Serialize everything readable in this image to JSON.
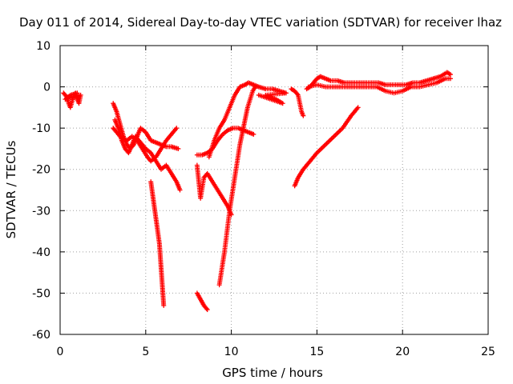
{
  "chart_data": {
    "type": "scatter",
    "title": "Day 011 of 2014, Sidereal Day-to-day VTEC variation (SDTVAR) for receiver lhaz",
    "xlabel": "GPS time / hours",
    "ylabel": "SDTVAR / TECUs",
    "xlim": [
      0,
      25
    ],
    "ylim": [
      -60,
      10
    ],
    "x_ticks": [
      "0",
      "5",
      "10",
      "15",
      "20",
      "25"
    ],
    "y_ticks": [
      "10",
      "0",
      "-10",
      "-20",
      "-30",
      "-40",
      "-50",
      "-60"
    ],
    "grid": true,
    "marker": "+",
    "color": "#ff0000",
    "series": [
      {
        "points": [
          [
            0.2,
            -1.5
          ],
          [
            0.4,
            -2.5
          ],
          [
            0.5,
            -4
          ],
          [
            0.6,
            -5
          ],
          [
            0.7,
            -3.5
          ],
          [
            0.8,
            -2
          ],
          [
            0.9,
            -1.5
          ],
          [
            1.0,
            -3
          ],
          [
            1.1,
            -4
          ],
          [
            1.2,
            -2
          ],
          [
            0.3,
            -3
          ],
          [
            0.6,
            -2
          ],
          [
            1.0,
            -1.5
          ]
        ]
      },
      {
        "points": [
          [
            3.1,
            -4
          ],
          [
            3.3,
            -6
          ],
          [
            3.5,
            -9
          ],
          [
            3.7,
            -12
          ],
          [
            3.9,
            -14
          ],
          [
            4.1,
            -15
          ],
          [
            4.3,
            -14
          ],
          [
            4.5,
            -12
          ],
          [
            4.7,
            -10
          ],
          [
            5.0,
            -11
          ],
          [
            5.3,
            -13
          ],
          [
            5.6,
            -13.5
          ],
          [
            5.9,
            -14
          ],
          [
            6.2,
            -14.5
          ],
          [
            6.5,
            -14.5
          ],
          [
            6.9,
            -15
          ]
        ]
      },
      {
        "points": [
          [
            3.1,
            -10
          ],
          [
            3.3,
            -11
          ],
          [
            3.6,
            -12.5
          ],
          [
            3.9,
            -13
          ],
          [
            4.2,
            -12
          ],
          [
            4.5,
            -13
          ],
          [
            4.8,
            -15
          ],
          [
            5.1,
            -17
          ],
          [
            5.3,
            -18
          ],
          [
            5.6,
            -17
          ],
          [
            5.9,
            -15
          ],
          [
            6.2,
            -13
          ],
          [
            6.5,
            -11.5
          ],
          [
            6.8,
            -10
          ]
        ]
      },
      {
        "points": [
          [
            3.2,
            -8
          ],
          [
            3.4,
            -10
          ],
          [
            3.6,
            -13
          ],
          [
            3.8,
            -15
          ],
          [
            4.0,
            -16
          ],
          [
            4.2,
            -14
          ],
          [
            4.4,
            -12
          ],
          [
            4.6,
            -13
          ],
          [
            4.8,
            -14
          ],
          [
            5.0,
            -15
          ],
          [
            5.3,
            -16
          ],
          [
            5.6,
            -18
          ],
          [
            5.9,
            -20
          ],
          [
            6.2,
            -19
          ],
          [
            6.5,
            -21
          ],
          [
            6.8,
            -23
          ],
          [
            7.0,
            -25
          ]
        ]
      },
      {
        "points": [
          [
            5.3,
            -23
          ],
          [
            5.4,
            -26
          ],
          [
            5.5,
            -29
          ],
          [
            5.6,
            -32
          ],
          [
            5.7,
            -35
          ],
          [
            5.8,
            -38
          ],
          [
            5.85,
            -41
          ],
          [
            5.9,
            -44
          ],
          [
            5.95,
            -47
          ],
          [
            6.0,
            -50
          ],
          [
            6.05,
            -53
          ]
        ]
      },
      {
        "points": [
          [
            8.0,
            -16.5
          ],
          [
            8.3,
            -16.5
          ],
          [
            8.6,
            -16
          ],
          [
            8.9,
            -15
          ],
          [
            9.2,
            -13
          ],
          [
            9.5,
            -11.5
          ],
          [
            9.8,
            -10.5
          ],
          [
            10.1,
            -10
          ],
          [
            10.4,
            -10
          ],
          [
            10.7,
            -10.5
          ],
          [
            11.0,
            -11
          ],
          [
            11.3,
            -11.5
          ]
        ]
      },
      {
        "points": [
          [
            8.0,
            -19
          ],
          [
            8.1,
            -23
          ],
          [
            8.2,
            -27
          ],
          [
            8.4,
            -22
          ],
          [
            8.6,
            -21
          ],
          [
            8.9,
            -23
          ],
          [
            9.2,
            -25
          ],
          [
            9.5,
            -27
          ],
          [
            9.8,
            -29
          ],
          [
            10.0,
            -31
          ]
        ]
      },
      {
        "points": [
          [
            8.0,
            -50
          ],
          [
            8.2,
            -51.5
          ],
          [
            8.4,
            -53
          ],
          [
            8.6,
            -54
          ]
        ]
      },
      {
        "points": [
          [
            9.3,
            -48
          ],
          [
            9.45,
            -44
          ],
          [
            9.6,
            -40
          ],
          [
            9.75,
            -35
          ],
          [
            9.9,
            -30
          ],
          [
            10.05,
            -26
          ],
          [
            10.2,
            -22
          ],
          [
            10.35,
            -18
          ],
          [
            10.5,
            -14
          ],
          [
            10.65,
            -11
          ],
          [
            10.8,
            -8
          ],
          [
            10.95,
            -5
          ],
          [
            11.1,
            -3
          ],
          [
            11.25,
            -1
          ],
          [
            11.4,
            0
          ]
        ]
      },
      {
        "points": [
          [
            8.7,
            -17
          ],
          [
            9.0,
            -13
          ],
          [
            9.3,
            -10
          ],
          [
            9.6,
            -8
          ],
          [
            9.9,
            -5
          ],
          [
            10.2,
            -2
          ],
          [
            10.5,
            0
          ],
          [
            10.8,
            0.5
          ],
          [
            11.0,
            1
          ],
          [
            11.3,
            0.5
          ],
          [
            11.6,
            0
          ],
          [
            12.0,
            -0.5
          ],
          [
            12.4,
            -0.5
          ],
          [
            12.8,
            -1
          ],
          [
            13.2,
            -1.5
          ],
          [
            12.0,
            -2
          ],
          [
            12.6,
            -3
          ],
          [
            13.0,
            -4
          ],
          [
            11.6,
            -2
          ]
        ]
      },
      {
        "points": [
          [
            13.5,
            -0.5
          ],
          [
            13.7,
            -1
          ],
          [
            13.9,
            -2
          ],
          [
            14.0,
            -4
          ],
          [
            14.1,
            -6
          ],
          [
            14.2,
            -7
          ]
        ]
      },
      {
        "points": [
          [
            13.7,
            -24
          ],
          [
            13.9,
            -22
          ],
          [
            14.2,
            -20
          ],
          [
            14.6,
            -18
          ],
          [
            15.0,
            -16
          ],
          [
            15.5,
            -14
          ],
          [
            16.0,
            -12
          ],
          [
            16.5,
            -10
          ],
          [
            17.0,
            -7
          ],
          [
            17.4,
            -5
          ]
        ]
      },
      {
        "points": [
          [
            14.4,
            -0.5
          ],
          [
            14.6,
            0
          ],
          [
            14.8,
            1
          ],
          [
            15.0,
            2
          ],
          [
            15.2,
            2.5
          ],
          [
            15.5,
            2
          ],
          [
            15.8,
            1.5
          ],
          [
            16.2,
            1.5
          ],
          [
            16.6,
            1
          ],
          [
            17.0,
            1
          ],
          [
            17.4,
            1
          ],
          [
            17.8,
            1
          ],
          [
            18.2,
            1
          ],
          [
            18.6,
            1
          ],
          [
            19.0,
            0.5
          ],
          [
            19.4,
            0.5
          ],
          [
            19.8,
            0.5
          ],
          [
            20.2,
            0.5
          ],
          [
            20.6,
            1
          ],
          [
            21.0,
            1
          ],
          [
            21.4,
            1.5
          ],
          [
            21.8,
            2
          ],
          [
            22.2,
            2.5
          ],
          [
            22.6,
            3.5
          ],
          [
            22.8,
            3
          ]
        ]
      },
      {
        "points": [
          [
            14.5,
            0
          ],
          [
            15.0,
            0.5
          ],
          [
            15.5,
            0
          ],
          [
            16.0,
            0
          ],
          [
            16.5,
            0
          ],
          [
            17.0,
            0
          ],
          [
            17.5,
            0
          ],
          [
            18.0,
            0
          ],
          [
            18.5,
            0
          ],
          [
            19.0,
            -1
          ],
          [
            19.5,
            -1.5
          ],
          [
            20.0,
            -1
          ],
          [
            20.5,
            0
          ],
          [
            21.0,
            0
          ],
          [
            21.5,
            0.5
          ],
          [
            22.0,
            1
          ],
          [
            22.5,
            2
          ],
          [
            22.8,
            2
          ]
        ]
      }
    ]
  }
}
